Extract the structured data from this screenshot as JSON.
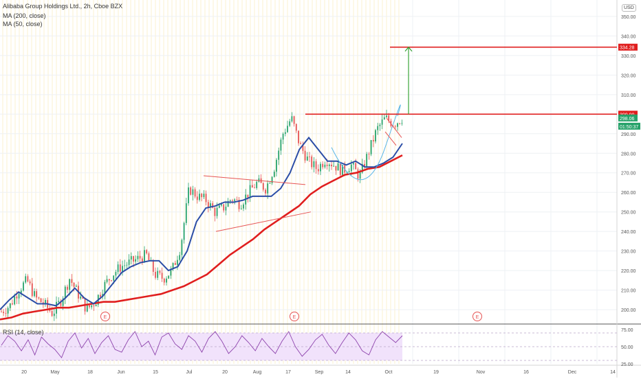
{
  "header": {
    "symbol_line": "Alibaba Group Holdings Ltd., 2h, Cboe BZX",
    "ma200_label": "MA (200, close)",
    "ma50_label": "MA (50, close)",
    "rsi_label": "RSI (14, close)",
    "currency": "USD"
  },
  "chart_data": {
    "type": "candlestick",
    "price_axis": {
      "ylim": [
        193,
        357
      ],
      "ticks": [
        200,
        210,
        220,
        230,
        240,
        250,
        260,
        270,
        280,
        290,
        300,
        310,
        320,
        330,
        340,
        350
      ]
    },
    "time_axis": {
      "labels": [
        "20",
        "May",
        "18",
        "Jun",
        "15",
        "Jul",
        "20",
        "Aug",
        "17",
        "Sep",
        "14",
        "Oct",
        "19",
        "Nov",
        "16",
        "Dec",
        "14"
      ]
    },
    "candles_sampled_close": [
      199,
      202,
      210,
      215,
      206,
      203,
      198,
      205,
      216,
      208,
      200,
      204,
      212,
      218,
      222,
      224,
      226,
      228,
      218,
      216,
      220,
      232,
      262,
      258,
      256,
      250,
      252,
      257,
      254,
      260,
      265,
      262,
      273,
      290,
      298,
      284,
      276,
      272,
      277,
      274,
      271,
      274,
      268,
      280,
      292,
      298,
      295,
      298
    ],
    "ma50": [
      200,
      205,
      209,
      206,
      203,
      203,
      202,
      206,
      211,
      206,
      203,
      207,
      213,
      219,
      222,
      224,
      225,
      225,
      220,
      222,
      230,
      245,
      252,
      253,
      255,
      255,
      256,
      258,
      258,
      258,
      262,
      270,
      282,
      288,
      282,
      276,
      276,
      274,
      276,
      273,
      273,
      275,
      278,
      285
    ],
    "ma200": [
      195,
      196,
      198,
      199,
      200,
      201,
      201,
      202,
      203,
      204,
      204,
      205,
      206,
      207,
      208,
      210,
      212,
      215,
      218,
      223,
      228,
      232,
      236,
      241,
      245,
      249,
      253,
      259,
      263,
      266,
      269,
      270,
      272,
      273,
      276,
      279
    ],
    "levels": [
      {
        "label": "334.28",
        "value": 334.28,
        "color": "#e01e1e"
      },
      {
        "label": "300.00",
        "value": 300.0,
        "color": "#e01e1e"
      }
    ],
    "last_price": {
      "label": "298.06",
      "value": 298.06,
      "countdown": "01:50:37",
      "color": "#26a269"
    },
    "target_arrow": {
      "from": 300.0,
      "to": 334.28,
      "color": "#3aa53a"
    },
    "events": [
      "E",
      "E",
      "E"
    ],
    "rsi": {
      "ylim": [
        25,
        80
      ],
      "ticks": [
        {
          "label": "75.00",
          "v": 75
        },
        {
          "label": "50.00",
          "v": 50
        },
        {
          "label": "25.00",
          "v": 25
        }
      ],
      "band": [
        30,
        70
      ],
      "values": [
        52,
        66,
        58,
        44,
        60,
        38,
        64,
        54,
        46,
        34,
        58,
        70,
        48,
        62,
        40,
        56,
        66,
        46,
        42,
        60,
        72,
        50,
        58,
        38,
        64,
        70,
        54,
        46,
        66,
        58,
        42,
        62,
        72,
        58,
        40,
        50,
        66,
        56,
        44,
        62,
        50,
        40,
        58,
        72,
        50,
        36,
        46,
        60,
        68,
        52,
        40,
        56,
        70,
        60,
        44,
        38,
        60,
        72,
        64,
        56,
        66
      ]
    },
    "colors": {
      "ma50": "#2b4da6",
      "ma200": "#e01e1e",
      "trend": "#e65353",
      "up": "#26a269",
      "down": "#e65353",
      "rsi_line": "#8e44ad",
      "rsi_band": "#f1e2fb"
    }
  }
}
